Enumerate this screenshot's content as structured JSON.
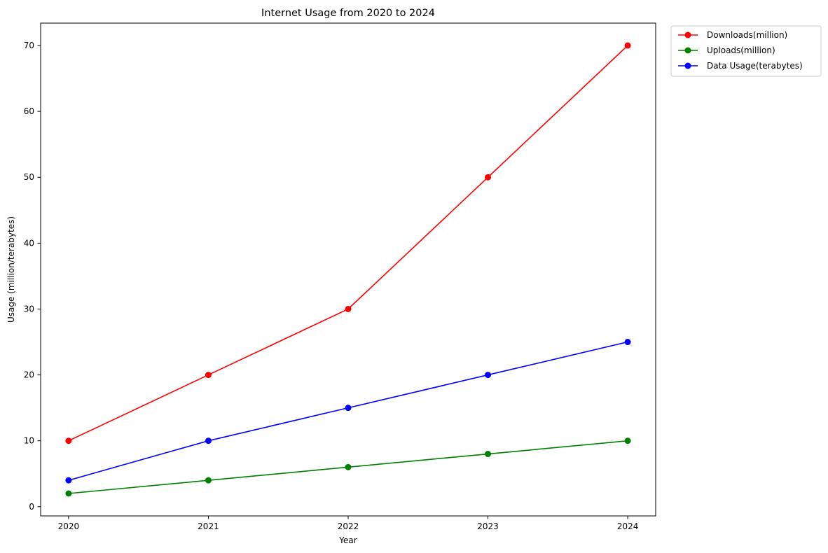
{
  "chart_data": {
    "type": "line",
    "title": "Internet Usage from 2020 to 2024",
    "xlabel": "Year",
    "ylabel": "Usage (million/terabytes)",
    "x": [
      2020,
      2021,
      2022,
      2023,
      2024
    ],
    "x_tick_labels": [
      "2020",
      "2021",
      "2022",
      "2023",
      "2024"
    ],
    "ylim": [
      -1.4,
      73.4
    ],
    "y_ticks": [
      0,
      10,
      20,
      30,
      40,
      50,
      60,
      70
    ],
    "y_tick_labels": [
      "0",
      "10",
      "20",
      "30",
      "40",
      "50",
      "60",
      "70"
    ],
    "grid": false,
    "legend_position": "outside-top-right",
    "marker": "circle",
    "series": [
      {
        "name": "Downloads(million)",
        "color": "#ff0000",
        "values": [
          10,
          20,
          30,
          50,
          70
        ]
      },
      {
        "name": "Uploads(million)",
        "color": "#008000",
        "values": [
          2,
          4,
          6,
          8,
          10
        ]
      },
      {
        "name": "Data Usage(terabytes)",
        "color": "#0000ff",
        "values": [
          4,
          10,
          15,
          20,
          25
        ]
      }
    ]
  }
}
